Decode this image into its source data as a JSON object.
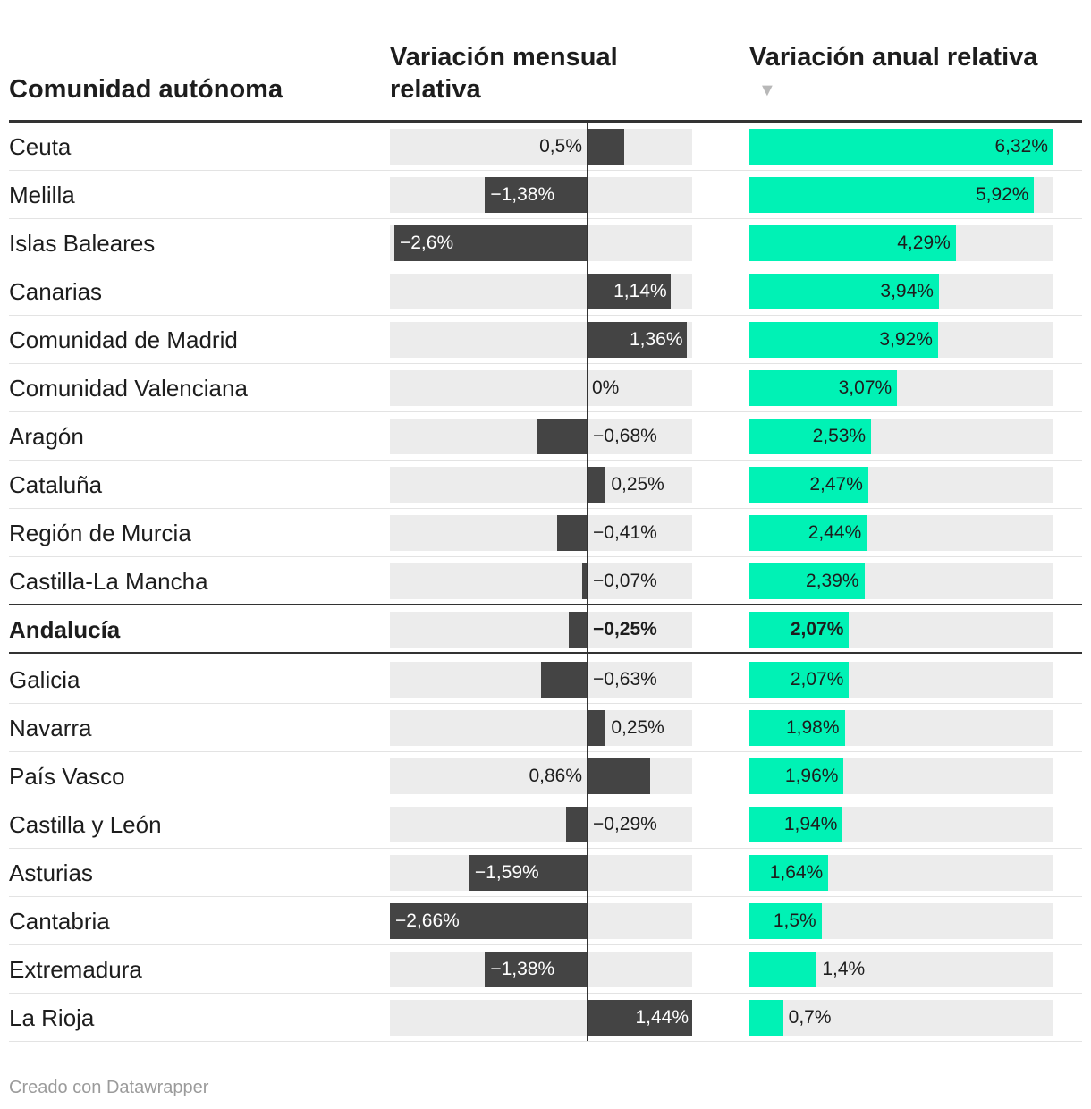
{
  "chart_data": {
    "type": "table",
    "headers": {
      "comunidad": "Comunidad autónoma",
      "mensual": "Variación mensual relativa",
      "anual": "Variación anual relativa"
    },
    "sort_indicator": "▼",
    "mensual_range": [
      -2.66,
      1.44
    ],
    "anual_range": [
      0,
      6.32
    ],
    "highlight": "Andalucía",
    "rows": [
      {
        "name": "Ceuta",
        "mensual": 0.5,
        "mensual_label": "0,5%",
        "anual": 6.32,
        "anual_label": "6,32%"
      },
      {
        "name": "Melilla",
        "mensual": -1.38,
        "mensual_label": "−1,38%",
        "anual": 5.92,
        "anual_label": "5,92%"
      },
      {
        "name": "Islas Baleares",
        "mensual": -2.6,
        "mensual_label": "−2,6%",
        "anual": 4.29,
        "anual_label": "4,29%"
      },
      {
        "name": "Canarias",
        "mensual": 1.14,
        "mensual_label": "1,14%",
        "anual": 3.94,
        "anual_label": "3,94%"
      },
      {
        "name": "Comunidad de Madrid",
        "mensual": 1.36,
        "mensual_label": "1,36%",
        "anual": 3.92,
        "anual_label": "3,92%"
      },
      {
        "name": "Comunidad Valenciana",
        "mensual": 0,
        "mensual_label": "0%",
        "anual": 3.07,
        "anual_label": "3,07%"
      },
      {
        "name": "Aragón",
        "mensual": -0.68,
        "mensual_label": "−0,68%",
        "anual": 2.53,
        "anual_label": "2,53%"
      },
      {
        "name": "Cataluña",
        "mensual": 0.25,
        "mensual_label": "0,25%",
        "anual": 2.47,
        "anual_label": "2,47%"
      },
      {
        "name": "Región de Murcia",
        "mensual": -0.41,
        "mensual_label": "−0,41%",
        "anual": 2.44,
        "anual_label": "2,44%"
      },
      {
        "name": "Castilla-La Mancha",
        "mensual": -0.07,
        "mensual_label": "−0,07%",
        "anual": 2.39,
        "anual_label": "2,39%"
      },
      {
        "name": "Andalucía",
        "mensual": -0.25,
        "mensual_label": "−0,25%",
        "anual": 2.07,
        "anual_label": "2,07%"
      },
      {
        "name": "Galicia",
        "mensual": -0.63,
        "mensual_label": "−0,63%",
        "anual": 2.07,
        "anual_label": "2,07%"
      },
      {
        "name": "Navarra",
        "mensual": 0.25,
        "mensual_label": "0,25%",
        "anual": 1.98,
        "anual_label": "1,98%"
      },
      {
        "name": "País Vasco",
        "mensual": 0.86,
        "mensual_label": "0,86%",
        "anual": 1.96,
        "anual_label": "1,96%"
      },
      {
        "name": "Castilla y León",
        "mensual": -0.29,
        "mensual_label": "−0,29%",
        "anual": 1.94,
        "anual_label": "1,94%"
      },
      {
        "name": "Asturias",
        "mensual": -1.59,
        "mensual_label": "−1,59%",
        "anual": 1.64,
        "anual_label": "1,64%"
      },
      {
        "name": "Cantabria",
        "mensual": -2.66,
        "mensual_label": "−2,66%",
        "anual": 1.5,
        "anual_label": "1,5%"
      },
      {
        "name": "Extremadura",
        "mensual": -1.38,
        "mensual_label": "−1,38%",
        "anual": 1.4,
        "anual_label": "1,4%"
      },
      {
        "name": "La Rioja",
        "mensual": 1.44,
        "mensual_label": "1,44%",
        "anual": 0.7,
        "anual_label": "0,7%"
      }
    ],
    "colors": {
      "mensual_bar": "#444444",
      "anual_bar": "#00f2b5",
      "track": "#ececec"
    }
  },
  "footer": "Creado con Datawrapper"
}
